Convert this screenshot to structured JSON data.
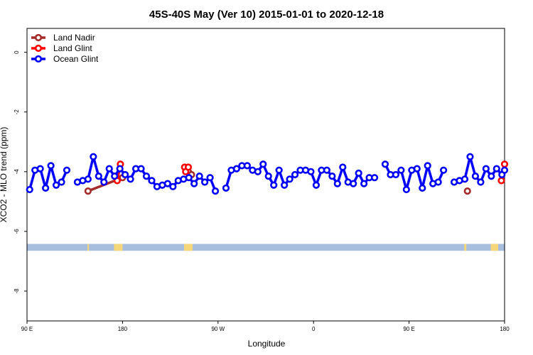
{
  "chart_data": {
    "type": "line",
    "title": "45S-40S May (Ver 10)   2015-01-01 to 2020-12-18",
    "xlabel": "Longitude",
    "ylabel": "XCO2 - MLO trend (ppm)",
    "xlim": [
      90,
      540
    ],
    "ylim": [
      -9.0,
      0.8
    ],
    "x_ticks": [
      {
        "value": 90,
        "label": "90 E"
      },
      {
        "value": 180,
        "label": "180"
      },
      {
        "value": 270,
        "label": "90 W"
      },
      {
        "value": 360,
        "label": "0"
      },
      {
        "value": 450,
        "label": "90 E"
      },
      {
        "value": 540,
        "label": "180"
      }
    ],
    "y_ticks": [
      {
        "value": 0,
        "label": "0"
      },
      {
        "value": -2,
        "label": "-2"
      },
      {
        "value": -4,
        "label": "-4"
      },
      {
        "value": -6,
        "label": "-6"
      },
      {
        "value": -8,
        "label": "-8"
      }
    ],
    "legend_position": "top-left",
    "grid": false,
    "series": [
      {
        "name": "Land Nadir",
        "color": "#a52a2a",
        "segments": [
          [
            [
              147.5,
              -4.65
            ],
            [
              180,
              -4.2
            ]
          ],
          [
            [
              [
                242,
                -4.0
              ],
              [
                245,
                -4.1
              ]
            ]
          ],
          [
            [
              505,
              -4.65
            ]
          ]
        ]
      },
      {
        "name": "Land Glint",
        "color": "#ff0000",
        "segments": [
          [
            [
              175,
              -4.3
            ],
            [
              178,
              -3.75
            ]
          ],
          [
            [
              238.5,
              -3.85
            ],
            [
              239.5,
              -4.0
            ],
            [
              242,
              -3.85
            ]
          ],
          [
            [
              537,
              -4.3
            ],
            [
              540,
              -3.75
            ]
          ]
        ]
      },
      {
        "name": "Ocean Glint",
        "color": "#0000ff",
        "segments": [
          [
            [
              92.5,
              -4.6
            ],
            [
              97.5,
              -3.95
            ],
            [
              102.5,
              -3.9
            ],
            [
              107.5,
              -4.55
            ],
            [
              112.5,
              -3.8
            ],
            [
              117.5,
              -4.45
            ],
            [
              122.5,
              -4.35
            ],
            [
              127.5,
              -3.95
            ]
          ],
          [
            [
              137.5,
              -4.35
            ],
            [
              142.5,
              -4.3
            ],
            [
              147.5,
              -4.25
            ],
            [
              152.5,
              -3.5
            ],
            [
              157.5,
              -4.15
            ],
            [
              162.5,
              -4.35
            ],
            [
              167.5,
              -3.9
            ],
            [
              172.5,
              -4.15
            ],
            [
              177.5,
              -3.9
            ],
            [
              182.5,
              -4.1
            ],
            [
              187.5,
              -4.25
            ],
            [
              192.5,
              -3.9
            ],
            [
              197.5,
              -3.9
            ],
            [
              202.5,
              -4.15
            ],
            [
              207.5,
              -4.3
            ],
            [
              212.5,
              -4.5
            ],
            [
              217.5,
              -4.45
            ],
            [
              222.5,
              -4.4
            ],
            [
              227.5,
              -4.5
            ],
            [
              232.5,
              -4.3
            ],
            [
              237.5,
              -4.25
            ],
            [
              242.5,
              -4.2
            ],
            [
              247.5,
              -4.4
            ],
            [
              252.5,
              -4.15
            ],
            [
              257.5,
              -4.35
            ],
            [
              262.5,
              -4.2
            ],
            [
              267.5,
              -4.65
            ]
          ],
          [
            [
              277.5,
              -4.55
            ],
            [
              282.5,
              -3.95
            ],
            [
              287.5,
              -3.9
            ],
            [
              292.5,
              -3.8
            ],
            [
              297.5,
              -3.8
            ],
            [
              302.5,
              -3.95
            ],
            [
              307.5,
              -4.0
            ],
            [
              312.5,
              -3.75
            ],
            [
              317.5,
              -4.15
            ],
            [
              322.5,
              -4.45
            ],
            [
              327.5,
              -3.95
            ],
            [
              332.5,
              -4.45
            ],
            [
              337.5,
              -4.25
            ],
            [
              342.5,
              -4.1
            ],
            [
              347.5,
              -3.95
            ],
            [
              352.5,
              -3.95
            ],
            [
              357.5,
              -4.0
            ],
            [
              362.5,
              -4.45
            ],
            [
              367.5,
              -3.95
            ],
            [
              372.5,
              -3.95
            ],
            [
              377.5,
              -4.15
            ],
            [
              382.5,
              -4.4
            ],
            [
              387.5,
              -3.85
            ],
            [
              392.5,
              -4.35
            ],
            [
              397.5,
              -4.4
            ],
            [
              402.5,
              -4.05
            ],
            [
              407.5,
              -4.4
            ],
            [
              412.5,
              -4.2
            ],
            [
              417.5,
              -4.2
            ]
          ],
          [
            [
              427.5,
              -3.75
            ],
            [
              432.5,
              -4.1
            ],
            [
              437.5,
              -4.1
            ],
            [
              442.5,
              -3.95
            ],
            [
              447.5,
              -4.6
            ],
            [
              452.5,
              -3.95
            ],
            [
              457.5,
              -3.9
            ],
            [
              462.5,
              -4.55
            ],
            [
              467.5,
              -3.8
            ],
            [
              472.5,
              -4.4
            ],
            [
              477.5,
              -4.35
            ],
            [
              482.5,
              -3.95
            ]
          ],
          [
            [
              492.5,
              -4.35
            ],
            [
              497.5,
              -4.3
            ],
            [
              502.5,
              -4.25
            ],
            [
              507.5,
              -3.5
            ],
            [
              512.5,
              -4.15
            ],
            [
              517.5,
              -4.35
            ],
            [
              522.5,
              -3.9
            ],
            [
              527.5,
              -4.15
            ],
            [
              532.5,
              -3.9
            ],
            [
              537.5,
              -4.1
            ],
            [
              540,
              -3.95
            ]
          ]
        ]
      }
    ],
    "surface_strip": {
      "y_range": [
        -6.65,
        -6.42
      ],
      "ocean_color": "#a8bede",
      "land_color": "#f5d77a",
      "land_spans": [
        [
          147,
          148
        ],
        [
          172,
          180
        ],
        [
          238,
          246
        ],
        [
          502,
          504
        ],
        [
          527,
          534
        ]
      ]
    }
  }
}
